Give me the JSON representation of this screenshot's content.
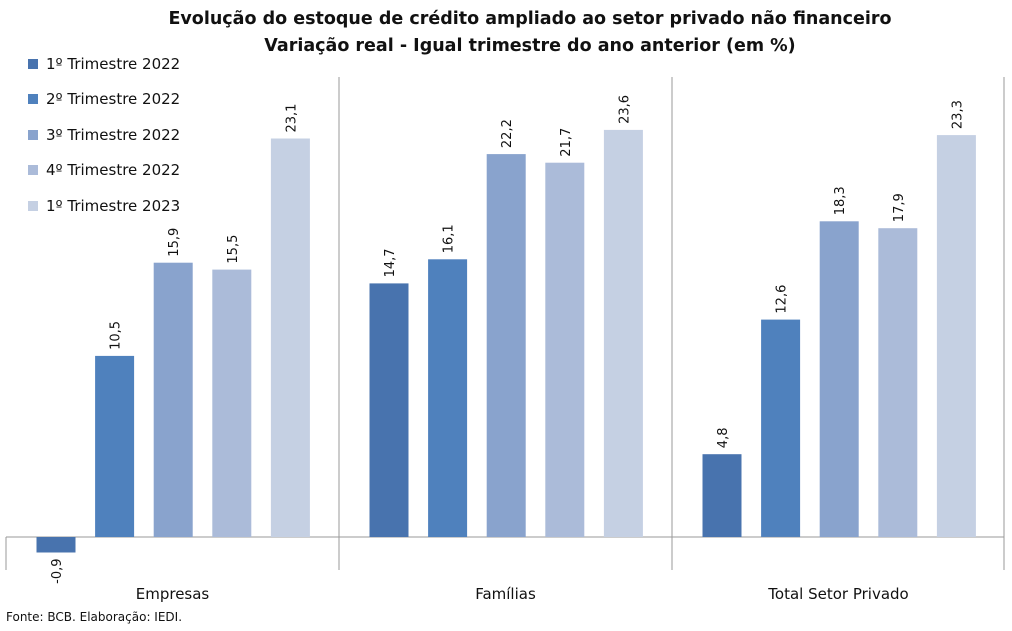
{
  "chart_data": {
    "type": "bar",
    "title": "Evolução do estoque de crédito ampliado ao setor privado não financeiro",
    "subtitle": "Variação real - Igual trimestre do ano anterior (em %)",
    "categories": [
      "Empresas",
      "Famílias",
      "Total Setor Privado"
    ],
    "series": [
      {
        "name": "1º Trimestre 2022",
        "color": "#4873ae",
        "values": [
          -0.9,
          14.7,
          4.8
        ],
        "labels": [
          "-0,9",
          "14,7",
          "4,8"
        ]
      },
      {
        "name": "2º Trimestre 2022",
        "color": "#4f81bd",
        "values": [
          10.5,
          16.1,
          12.6
        ],
        "labels": [
          "10,5",
          "16,1",
          "12,6"
        ]
      },
      {
        "name": "3º Trimestre 2022",
        "color": "#89a3cd",
        "values": [
          15.9,
          22.2,
          18.3
        ],
        "labels": [
          "15,9",
          "22,2",
          "18,3"
        ]
      },
      {
        "name": "4º Trimestre 2022",
        "color": "#abbbd9",
        "values": [
          15.5,
          21.7,
          17.9
        ],
        "labels": [
          "15,5",
          "21,7",
          "17,9"
        ]
      },
      {
        "name": "1º Trimestre 2023",
        "color": "#c5d0e3",
        "values": [
          23.1,
          23.6,
          23.3
        ],
        "labels": [
          "23,1",
          "23,6",
          "23,3"
        ]
      }
    ],
    "legend_position": "top-left",
    "grid": false
  },
  "source": "Fonte: BCB. Elaboração: IEDI."
}
